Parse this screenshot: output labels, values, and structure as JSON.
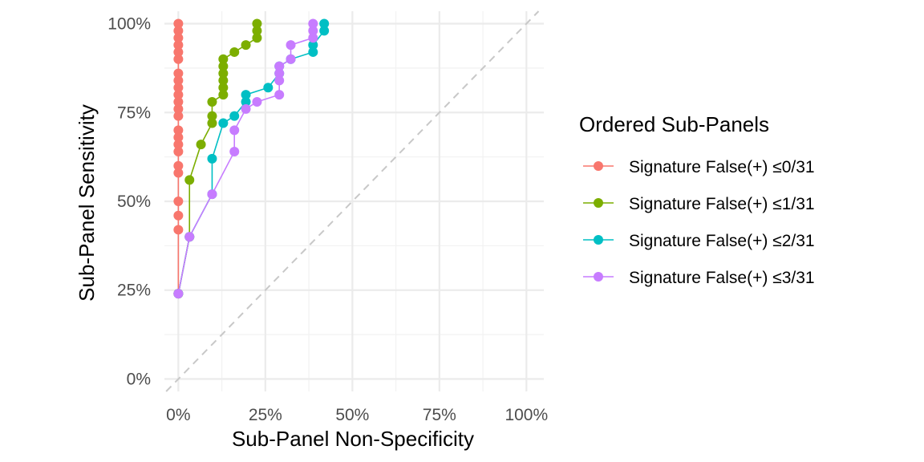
{
  "chart_data": {
    "type": "line",
    "xlabel": "Sub-Panel Non-Specificity",
    "ylabel": "Sub-Panel Sensitivity",
    "xlim": [
      -0.04,
      1.05
    ],
    "ylim": [
      -0.035,
      1.035
    ],
    "x_ticks": [
      0,
      0.25,
      0.5,
      0.75,
      1.0
    ],
    "x_tick_labels": [
      "0%",
      "25%",
      "50%",
      "75%",
      "100%"
    ],
    "y_ticks": [
      0,
      0.25,
      0.5,
      0.75,
      1.0
    ],
    "y_tick_labels": [
      "0%",
      "25%",
      "50%",
      "75%",
      "100%"
    ],
    "grid": true,
    "reference_line": "diagonal dashed y = x",
    "legend": {
      "title": "Ordered Sub-Panels",
      "placement": "right"
    },
    "series": [
      {
        "name": "Signature False(+) ≤0/31",
        "color": "#F8766D",
        "points": [
          [
            0,
            0.24
          ],
          [
            0,
            0.42
          ],
          [
            0,
            0.46
          ],
          [
            0,
            0.5
          ],
          [
            0,
            0.58
          ],
          [
            0,
            0.6
          ],
          [
            0,
            0.64
          ],
          [
            0,
            0.66
          ],
          [
            0,
            0.68
          ],
          [
            0,
            0.7
          ],
          [
            0,
            0.74
          ],
          [
            0,
            0.76
          ],
          [
            0,
            0.78
          ],
          [
            0,
            0.8
          ],
          [
            0,
            0.82
          ],
          [
            0,
            0.84
          ],
          [
            0,
            0.86
          ],
          [
            0,
            0.9
          ],
          [
            0,
            0.92
          ],
          [
            0,
            0.94
          ],
          [
            0,
            0.96
          ],
          [
            0,
            0.98
          ],
          [
            0,
            1.0
          ]
        ]
      },
      {
        "name": "Signature False(+) ≤1/31",
        "color": "#7CAE00",
        "points": [
          [
            0,
            0.24
          ],
          [
            0.032,
            0.4
          ],
          [
            0.032,
            0.56
          ],
          [
            0.065,
            0.66
          ],
          [
            0.097,
            0.72
          ],
          [
            0.097,
            0.74
          ],
          [
            0.097,
            0.78
          ],
          [
            0.129,
            0.8
          ],
          [
            0.129,
            0.82
          ],
          [
            0.129,
            0.84
          ],
          [
            0.129,
            0.86
          ],
          [
            0.129,
            0.88
          ],
          [
            0.129,
            0.9
          ],
          [
            0.161,
            0.92
          ],
          [
            0.194,
            0.94
          ],
          [
            0.226,
            0.96
          ],
          [
            0.226,
            0.98
          ],
          [
            0.226,
            1.0
          ]
        ]
      },
      {
        "name": "Signature False(+) ≤2/31",
        "color": "#00BFC4",
        "points": [
          [
            0,
            0.24
          ],
          [
            0.032,
            0.4
          ],
          [
            0.097,
            0.52
          ],
          [
            0.097,
            0.62
          ],
          [
            0.129,
            0.72
          ],
          [
            0.161,
            0.74
          ],
          [
            0.194,
            0.78
          ],
          [
            0.194,
            0.8
          ],
          [
            0.258,
            0.82
          ],
          [
            0.29,
            0.86
          ],
          [
            0.29,
            0.88
          ],
          [
            0.323,
            0.9
          ],
          [
            0.387,
            0.92
          ],
          [
            0.387,
            0.94
          ],
          [
            0.419,
            0.98
          ],
          [
            0.419,
            1.0
          ]
        ]
      },
      {
        "name": "Signature False(+) ≤3/31",
        "color": "#C77CFF",
        "points": [
          [
            0,
            0.24
          ],
          [
            0.032,
            0.4
          ],
          [
            0.097,
            0.52
          ],
          [
            0.161,
            0.64
          ],
          [
            0.161,
            0.7
          ],
          [
            0.194,
            0.76
          ],
          [
            0.226,
            0.78
          ],
          [
            0.29,
            0.8
          ],
          [
            0.29,
            0.84
          ],
          [
            0.29,
            0.86
          ],
          [
            0.29,
            0.88
          ],
          [
            0.323,
            0.9
          ],
          [
            0.323,
            0.94
          ],
          [
            0.387,
            0.96
          ],
          [
            0.387,
            0.98
          ],
          [
            0.387,
            1.0
          ]
        ]
      }
    ]
  }
}
